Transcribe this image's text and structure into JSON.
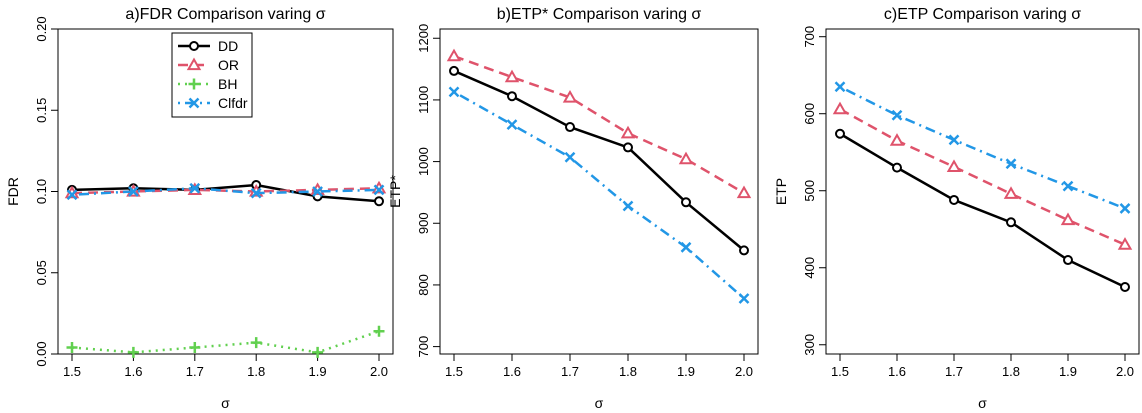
{
  "chart_data": [
    {
      "type": "line",
      "title": "a)FDR Comparison varing σ",
      "xlabel": "σ",
      "ylabel": "FDR",
      "x": [
        1.5,
        1.6,
        1.7,
        1.8,
        1.9,
        2.0
      ],
      "xticks": [
        "1.5",
        "1.6",
        "1.7",
        "1.8",
        "1.9",
        "2.0"
      ],
      "xlim": [
        1.5,
        2.0
      ],
      "ylim": [
        0.0,
        0.2
      ],
      "yticks": [
        "0.00",
        "0.05",
        "0.10",
        "0.15",
        "0.20"
      ],
      "ytick_values": [
        0.0,
        0.05,
        0.1,
        0.15,
        0.2
      ],
      "legend": "top-center",
      "series": [
        {
          "name": "DD",
          "color": "#000000",
          "marker": "circle",
          "dash": "solid",
          "values": [
            0.101,
            0.102,
            0.101,
            0.104,
            0.097,
            0.094
          ]
        },
        {
          "name": "OR",
          "color": "#DF536B",
          "marker": "triangle",
          "dash": "dashed",
          "values": [
            0.099,
            0.1,
            0.101,
            0.1,
            0.101,
            0.102
          ]
        },
        {
          "name": "BH",
          "color": "#61D04F",
          "marker": "plus",
          "dash": "dotted",
          "values": [
            0.004,
            0.001,
            0.004,
            0.007,
            0.001,
            0.014
          ]
        },
        {
          "name": "Clfdr",
          "color": "#2297E6",
          "marker": "cross",
          "dash": "dashdot",
          "values": [
            0.098,
            0.1,
            0.102,
            0.099,
            0.1,
            0.101
          ]
        }
      ]
    },
    {
      "type": "line",
      "title": "b)ETP* Comparison varing σ",
      "xlabel": "σ",
      "ylabel": "ETP*",
      "x": [
        1.5,
        1.6,
        1.7,
        1.8,
        1.9,
        2.0
      ],
      "xticks": [
        "1.5",
        "1.6",
        "1.7",
        "1.8",
        "1.9",
        "2.0"
      ],
      "xlim": [
        1.5,
        2.0
      ],
      "ylim": [
        688,
        1215
      ],
      "yticks": [
        "700",
        "800",
        "900",
        "1000",
        "1100",
        "1200"
      ],
      "ytick_values": [
        700,
        800,
        900,
        1000,
        1100,
        1200
      ],
      "series": [
        {
          "color": "#000000",
          "marker": "circle",
          "dash": "solid",
          "values": [
            1147,
            1106,
            1056,
            1023,
            934,
            856
          ]
        },
        {
          "color": "#DF536B",
          "marker": "triangle",
          "dash": "dashed",
          "values": [
            1171,
            1137,
            1104,
            1046,
            1004,
            949
          ]
        },
        {
          "color": "#2297E6",
          "marker": "cross",
          "dash": "dashdot",
          "values": [
            1113,
            1060,
            1007,
            928,
            861,
            778
          ]
        }
      ]
    },
    {
      "type": "line",
      "title": "c)ETP Comparison varing σ",
      "xlabel": "σ",
      "ylabel": "ETP",
      "x": [
        1.5,
        1.6,
        1.7,
        1.8,
        1.9,
        2.0
      ],
      "xticks": [
        "1.5",
        "1.6",
        "1.7",
        "1.8",
        "1.9",
        "2.0"
      ],
      "xlim": [
        1.5,
        2.0
      ],
      "ylim": [
        288,
        710
      ],
      "yticks": [
        "300",
        "400",
        "500",
        "600",
        "700"
      ],
      "ytick_values": [
        300,
        400,
        500,
        600,
        700
      ],
      "series": [
        {
          "color": "#000000",
          "marker": "circle",
          "dash": "solid",
          "values": [
            574,
            530,
            488,
            459,
            410,
            375
          ]
        },
        {
          "color": "#DF536B",
          "marker": "triangle",
          "dash": "dashed",
          "values": [
            606,
            565,
            531,
            496,
            462,
            430
          ]
        },
        {
          "color": "#2297E6",
          "marker": "cross",
          "dash": "dashdot",
          "values": [
            635,
            598,
            566,
            535,
            506,
            477
          ]
        }
      ]
    }
  ]
}
